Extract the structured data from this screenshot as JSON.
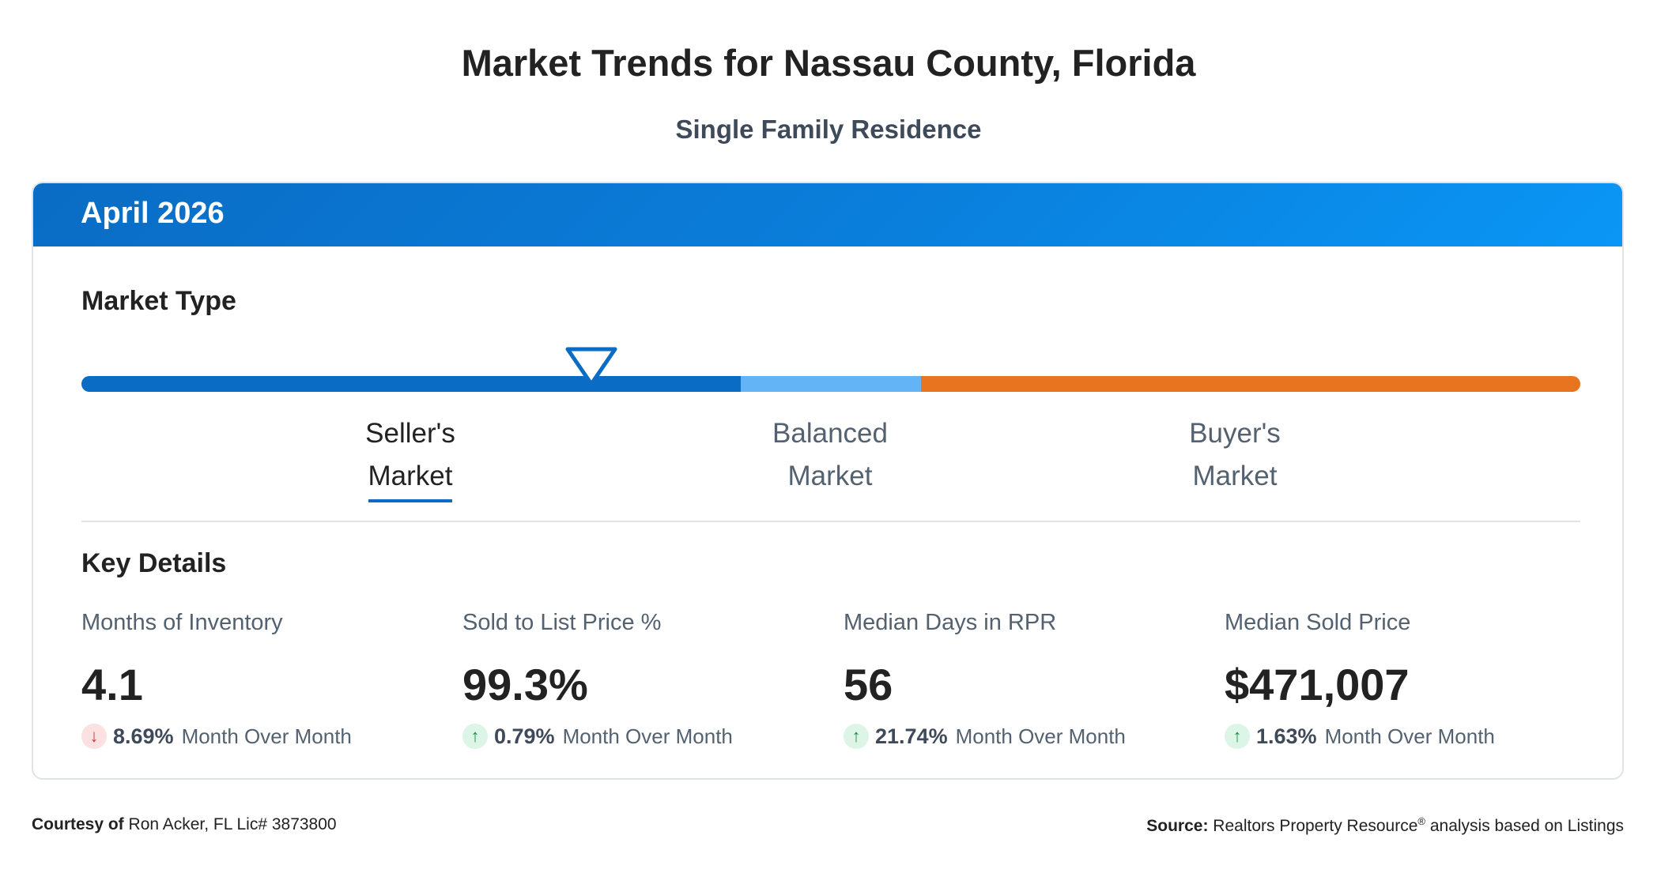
{
  "title": "Market Trends for Nassau County, Florida",
  "subtitle": "Single Family Residence",
  "card": {
    "header": "April 2026",
    "market_type_title": "Market Type",
    "market_position": 0.34,
    "markets": [
      {
        "line1": "Seller's",
        "line2": "Market",
        "active": true
      },
      {
        "line1": "Balanced",
        "line2": "Market",
        "active": false
      },
      {
        "line1": "Buyer's",
        "line2": "Market",
        "active": false
      }
    ],
    "key_details_title": "Key Details",
    "metrics": [
      {
        "label": "Months of Inventory",
        "value": "4.1",
        "direction": "down",
        "change": "8.69%",
        "change_text": "Month Over Month"
      },
      {
        "label": "Sold to List Price %",
        "value": "99.3%",
        "direction": "up",
        "change": "0.79%",
        "change_text": "Month Over Month"
      },
      {
        "label": "Median Days in RPR",
        "value": "56",
        "direction": "up",
        "change": "21.74%",
        "change_text": "Month Over Month"
      },
      {
        "label": "Median Sold Price",
        "value": "$471,007",
        "direction": "up",
        "change": "1.63%",
        "change_text": "Month Over Month"
      }
    ]
  },
  "footer": {
    "courtesy_label": "Courtesy of",
    "courtesy_text": "Ron Acker, FL Lic# 3873800",
    "source_label": "Source:",
    "source_text_1": "Realtors Property Resource",
    "source_sup": "®",
    "source_text_2": "analysis based on Listings"
  },
  "colors": {
    "seller": "#0a6cc4",
    "balanced": "#63b4f7",
    "buyer": "#e87420",
    "up": "#1f8a4c",
    "down": "#c53a2d"
  },
  "icons": {
    "indicator": "triangle-down-indicator-icon",
    "up": "arrow-up-icon",
    "down": "arrow-down-icon"
  }
}
